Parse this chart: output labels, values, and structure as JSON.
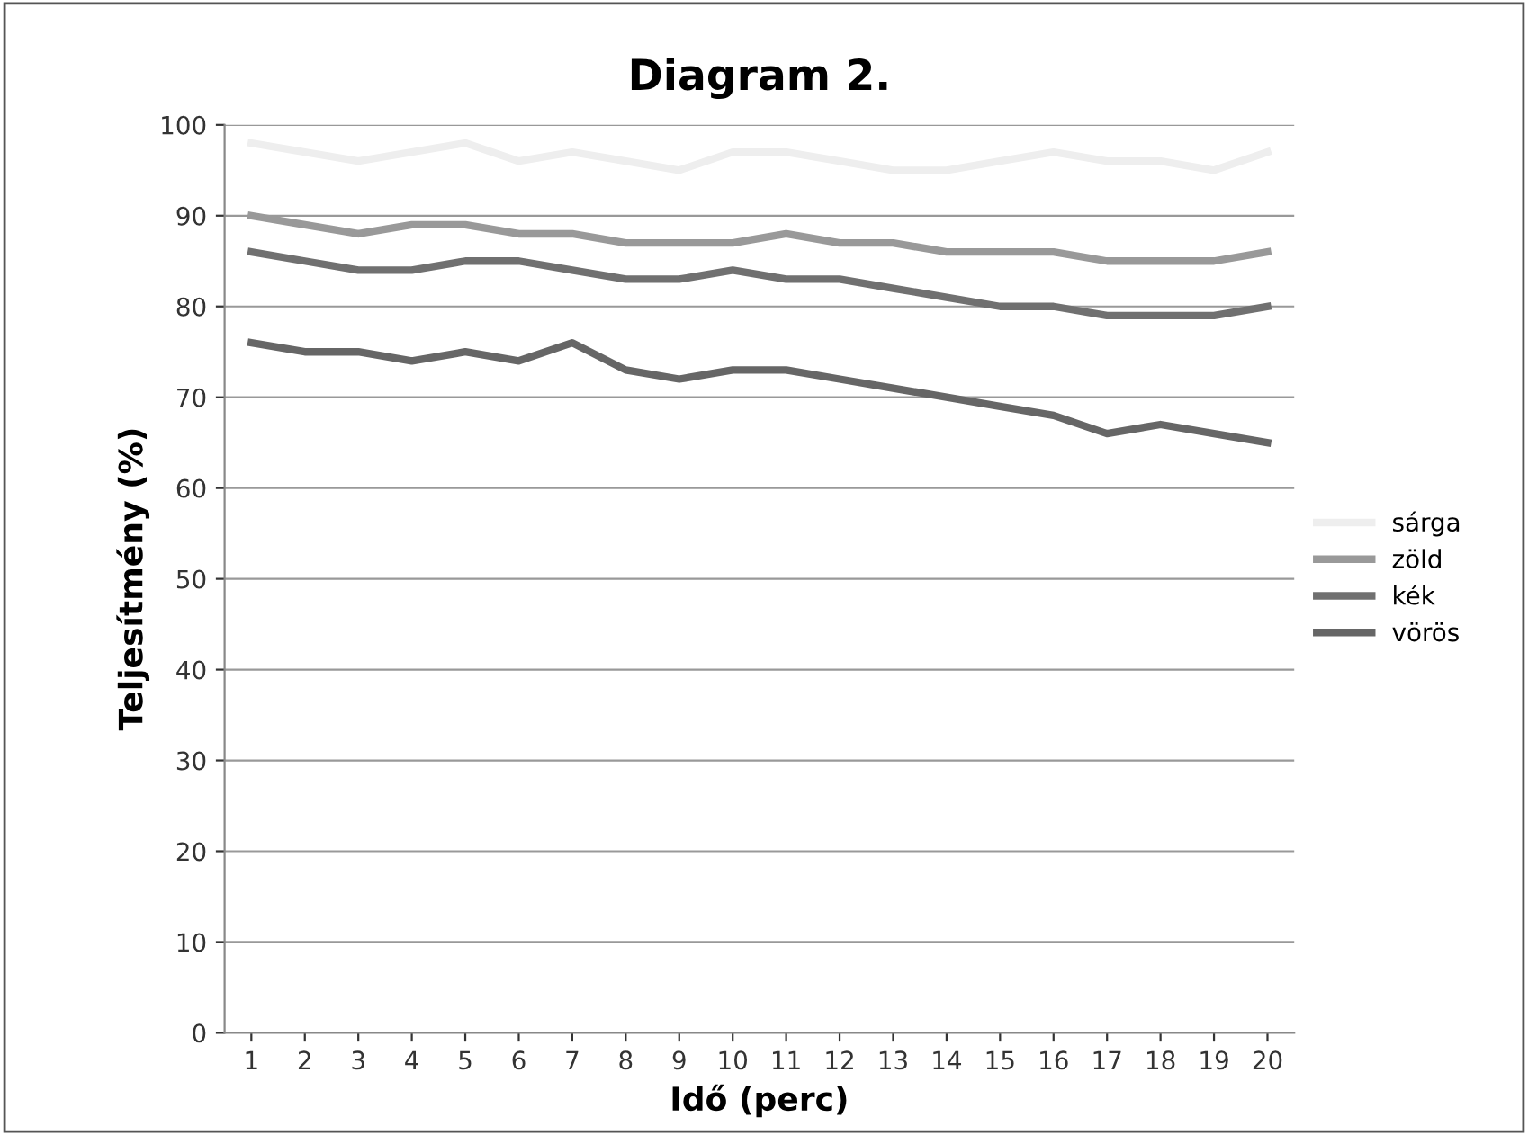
{
  "chart_data": {
    "type": "line",
    "title": "Diagram 2.",
    "xlabel": "Idő (perc)",
    "ylabel": "Teljesítmény (%)",
    "categories": [
      "1",
      "2",
      "3",
      "4",
      "5",
      "6",
      "7",
      "8",
      "9",
      "10",
      "11",
      "12",
      "13",
      "14",
      "15",
      "16",
      "17",
      "18",
      "19",
      "20"
    ],
    "series": [
      {
        "name": "sárga",
        "color": "#eeeeee",
        "values": [
          98,
          97,
          96,
          97,
          98,
          96,
          97,
          96,
          95,
          97,
          97,
          96,
          95,
          95,
          96,
          97,
          96,
          96,
          95,
          97
        ]
      },
      {
        "name": "zöld",
        "color": "#999999",
        "values": [
          90,
          89,
          88,
          89,
          89,
          88,
          88,
          87,
          87,
          87,
          88,
          87,
          87,
          86,
          86,
          86,
          85,
          85,
          85,
          86
        ]
      },
      {
        "name": "kék",
        "color": "#707070",
        "values": [
          86,
          85,
          84,
          84,
          85,
          85,
          84,
          83,
          83,
          84,
          83,
          83,
          82,
          81,
          80,
          80,
          79,
          79,
          79,
          80
        ]
      },
      {
        "name": "vörös",
        "color": "#666666",
        "values": [
          76,
          75,
          75,
          74,
          75,
          74,
          76,
          73,
          72,
          73,
          73,
          72,
          71,
          70,
          69,
          68,
          66,
          67,
          66,
          65
        ]
      }
    ],
    "ylim": [
      0,
      100
    ],
    "yticks": [
      0,
      10,
      20,
      30,
      40,
      50,
      60,
      70,
      80,
      90,
      100
    ],
    "grid": "y",
    "legend": "right",
    "marker": "none",
    "line_style": "solid"
  }
}
